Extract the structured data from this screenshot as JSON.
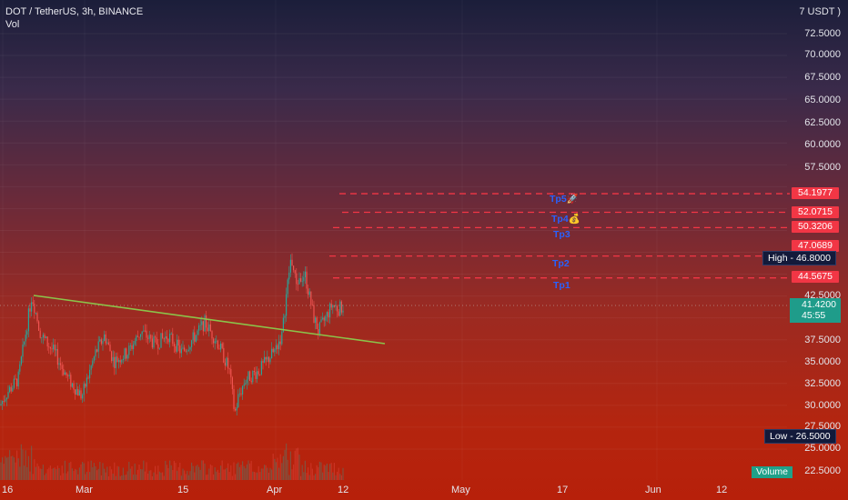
{
  "header": {
    "symbol_line": "DOT / TetherUS, 3h, BINANCE",
    "indicator": "Vol"
  },
  "price_axis": {
    "currency_label": "7 USDT )",
    "ticks": [
      "72.5000",
      "70.0000",
      "67.5000",
      "65.0000",
      "62.5000",
      "60.0000",
      "57.5000",
      "42.5000",
      "37.5000",
      "35.0000",
      "32.5000",
      "30.0000",
      "27.5000",
      "25.0000",
      "22.5000"
    ]
  },
  "levels": [
    {
      "value": "54.1977"
    },
    {
      "value": "52.0715"
    },
    {
      "value": "50.3206"
    },
    {
      "value": "47.0689"
    },
    {
      "value": "44.5675"
    }
  ],
  "targets": [
    {
      "label": "Tp5🚀"
    },
    {
      "label": "Tp4💰"
    },
    {
      "label": "Tp3"
    },
    {
      "label": "Tp2"
    },
    {
      "label": "Tp1"
    }
  ],
  "high": {
    "label": "High",
    "value": "46.8000"
  },
  "low": {
    "label": "Low",
    "value": "26.5000"
  },
  "current": {
    "price": "41.4200",
    "countdown": "45:55"
  },
  "volume_label": "Volume",
  "time_axis": [
    "16",
    "Mar",
    "15",
    "Apr",
    "12",
    "May",
    "17",
    "Jun",
    "12"
  ],
  "colors": {
    "level_line": "#f23645",
    "trend_line": "#8bc34a",
    "tp_text": "#2962ff",
    "candle_up": "#26a69a",
    "candle_down": "#ef5350",
    "current_price": "#1f9c8a"
  }
}
